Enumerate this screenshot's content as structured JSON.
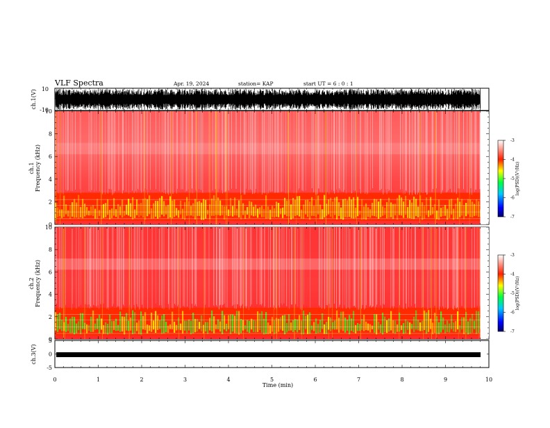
{
  "header": {
    "title": "VLF Spectra",
    "date": "Apr. 19, 2024",
    "station": "station= KAP",
    "start": "start  UT  =   6  : 0  : 1"
  },
  "colors": {
    "background_mid": "#ff4040",
    "band": "#ff2020",
    "energy": "#ffdd00",
    "energy_ch2": "#55dd22",
    "stripes": "#ffffff"
  },
  "chart_data": [
    {
      "type": "line",
      "panel": "ch1-waveform",
      "ylabel": "ch.1(V)",
      "ylim": [
        -10,
        10
      ],
      "yticks": [
        "10",
        "-10"
      ],
      "x": "Time (min)",
      "xlim": [
        0,
        10
      ]
    },
    {
      "type": "heatmap",
      "panel": "ch1-spectrogram",
      "ylabel": "ch.1\nFrequency  (kHz)",
      "ylabel_lines": [
        "ch.1",
        "Frequency  (kHz)"
      ],
      "ylim": [
        0,
        10
      ],
      "yticks": [
        "0",
        "2",
        "4",
        "6",
        "8",
        "10"
      ],
      "xlim": [
        0,
        10
      ],
      "data_end_min": 9.8,
      "colorbar": {
        "label": "log(PSD)(V²/Hz)",
        "range": [
          -7,
          -3
        ],
        "ticks": [
          "-3",
          "-4",
          "-5",
          "-6",
          "-7"
        ]
      }
    },
    {
      "type": "heatmap",
      "panel": "ch2-spectrogram",
      "ylabel_lines": [
        "ch.2",
        "Frequency  (kHz)"
      ],
      "ylim": [
        0,
        10
      ],
      "yticks": [
        "0",
        "2",
        "4",
        "6",
        "8",
        "10"
      ],
      "xlim": [
        0,
        10
      ],
      "data_end_min": 9.8,
      "colorbar": {
        "label": "log(PSD)(V²/Hz)",
        "range": [
          -7,
          -3
        ],
        "ticks": [
          "-3",
          "-4",
          "-5",
          "-6",
          "-7"
        ]
      }
    },
    {
      "type": "line",
      "panel": "ch3-waveform",
      "ylabel": "ch.3(V)",
      "ylim": [
        -5,
        5
      ],
      "yticks": [
        "5",
        "0",
        "-5"
      ],
      "xlim": [
        0,
        10
      ]
    }
  ],
  "xaxis": {
    "label": "Time  (min)",
    "ticks": [
      "0",
      "1",
      "2",
      "3",
      "4",
      "5",
      "6",
      "7",
      "8",
      "9",
      "10"
    ]
  }
}
